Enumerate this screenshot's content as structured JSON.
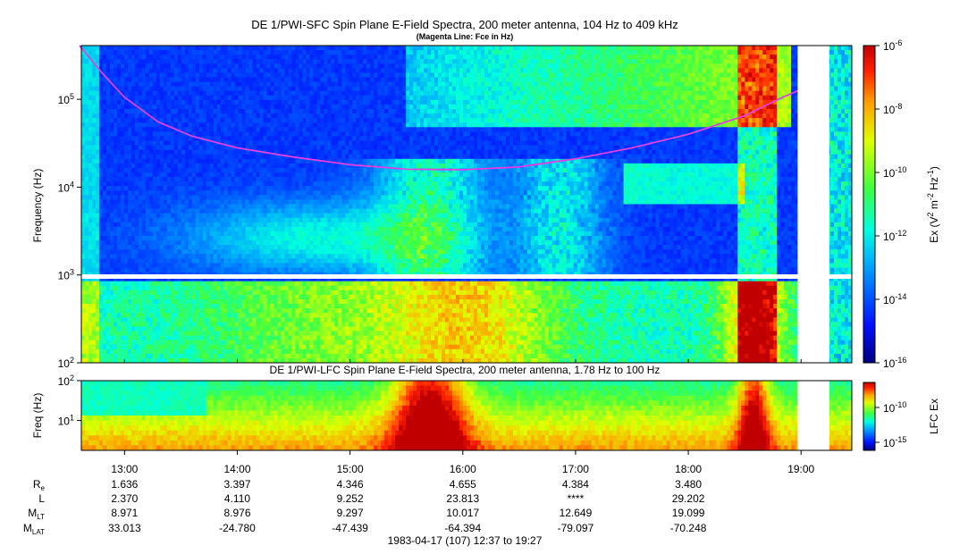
{
  "chart_data": [
    {
      "type": "heatmap",
      "title": "DE 1/PWI-SFC  Spin Plane E-Field Spectra, 200 meter antenna, 104 Hz to 409 kHz",
      "subtitle": "(Magenta Line: Fce in Hz)",
      "ylabel": "Frequency (Hz)",
      "y_scale": "log",
      "ylim": [
        100,
        409000
      ],
      "yticks": [
        {
          "value": 100,
          "base": "10",
          "exp": "2"
        },
        {
          "value": 1000,
          "base": "10",
          "exp": "3"
        },
        {
          "value": 10000,
          "base": "10",
          "exp": "4"
        },
        {
          "value": 100000,
          "base": "10",
          "exp": "5"
        }
      ],
      "colorbar": {
        "label_parts": [
          "Ex (V",
          "2",
          " m",
          "-2",
          " Hz",
          "-1",
          ")"
        ],
        "scale": "log",
        "range": [
          1e-16,
          1e-06
        ],
        "ticks": [
          {
            "value": 1e-06,
            "base": "10",
            "exp": "-6"
          },
          {
            "value": 1e-08,
            "base": "10",
            "exp": "-8"
          },
          {
            "value": 1e-10,
            "base": "10",
            "exp": "-10"
          },
          {
            "value": 1e-12,
            "base": "10",
            "exp": "-12"
          },
          {
            "value": 1e-14,
            "base": "10",
            "exp": "-14"
          },
          {
            "value": 1e-16,
            "base": "10",
            "exp": "-16"
          }
        ]
      },
      "fce_line": {
        "color": "#e040e0",
        "times_hours": [
          12.6,
          12.8,
          13.0,
          13.3,
          13.6,
          14.0,
          14.5,
          15.0,
          15.5,
          16.0,
          16.5,
          17.0,
          17.5,
          18.0,
          18.5,
          18.8,
          19.0
        ],
        "values_hz": [
          409000,
          200000,
          105000,
          55000,
          38000,
          28000,
          22000,
          18000,
          16000,
          15800,
          17000,
          21000,
          28000,
          40000,
          65000,
          100000,
          130000
        ]
      },
      "data_gaps_hours": [
        [
          18.97,
          19.25
        ]
      ]
    },
    {
      "type": "heatmap",
      "title": "DE 1/PWI-LFC  Spin Plane E-Field Spectra, 200 meter antenna, 1.78 Hz to 100 Hz",
      "ylabel": "Freq (Hz)",
      "y_scale": "log",
      "ylim": [
        1.78,
        100
      ],
      "yticks": [
        {
          "value": 10,
          "base": "10",
          "exp": "1"
        },
        {
          "value": 100,
          "base": "10",
          "exp": "2"
        }
      ],
      "colorbar": {
        "label": "LFC Ex",
        "scale": "log",
        "ticks": [
          {
            "value": 1e-10,
            "base": "10",
            "exp": "-10"
          },
          {
            "value": 1e-15,
            "base": "10",
            "exp": "-15"
          }
        ]
      },
      "data_gaps_hours": [
        [
          18.97,
          19.25
        ]
      ]
    }
  ],
  "time_axis": {
    "start_hours": 12.6167,
    "end_hours": 19.45,
    "ticks": [
      {
        "hours": 13,
        "label": "13:00"
      },
      {
        "hours": 14,
        "label": "14:00"
      },
      {
        "hours": 15,
        "label": "15:00"
      },
      {
        "hours": 16,
        "label": "16:00"
      },
      {
        "hours": 17,
        "label": "17:00"
      },
      {
        "hours": 18,
        "label": "18:00"
      },
      {
        "hours": 19,
        "label": "19:00"
      }
    ]
  },
  "ephemeris": {
    "rows": [
      {
        "label": "R",
        "sub": "e",
        "values": [
          "1.636",
          "3.397",
          "4.346",
          "4.655",
          "4.384",
          "3.480"
        ]
      },
      {
        "label": "L",
        "sub": "",
        "values": [
          "2.370",
          "4.110",
          "9.252",
          "23.813",
          "****",
          "29.202"
        ]
      },
      {
        "label": "M",
        "sub": "LT",
        "values": [
          "8.971",
          "8.976",
          "9.297",
          "10.017",
          "12.649",
          "19.099"
        ]
      },
      {
        "label": "M",
        "sub": "LAT",
        "values": [
          "33.013",
          "-24.780",
          "-47.439",
          "-64.394",
          "-79.097",
          "-70.248"
        ]
      }
    ]
  },
  "footer": "1983-04-17 (107) 12:37 to 19:27"
}
